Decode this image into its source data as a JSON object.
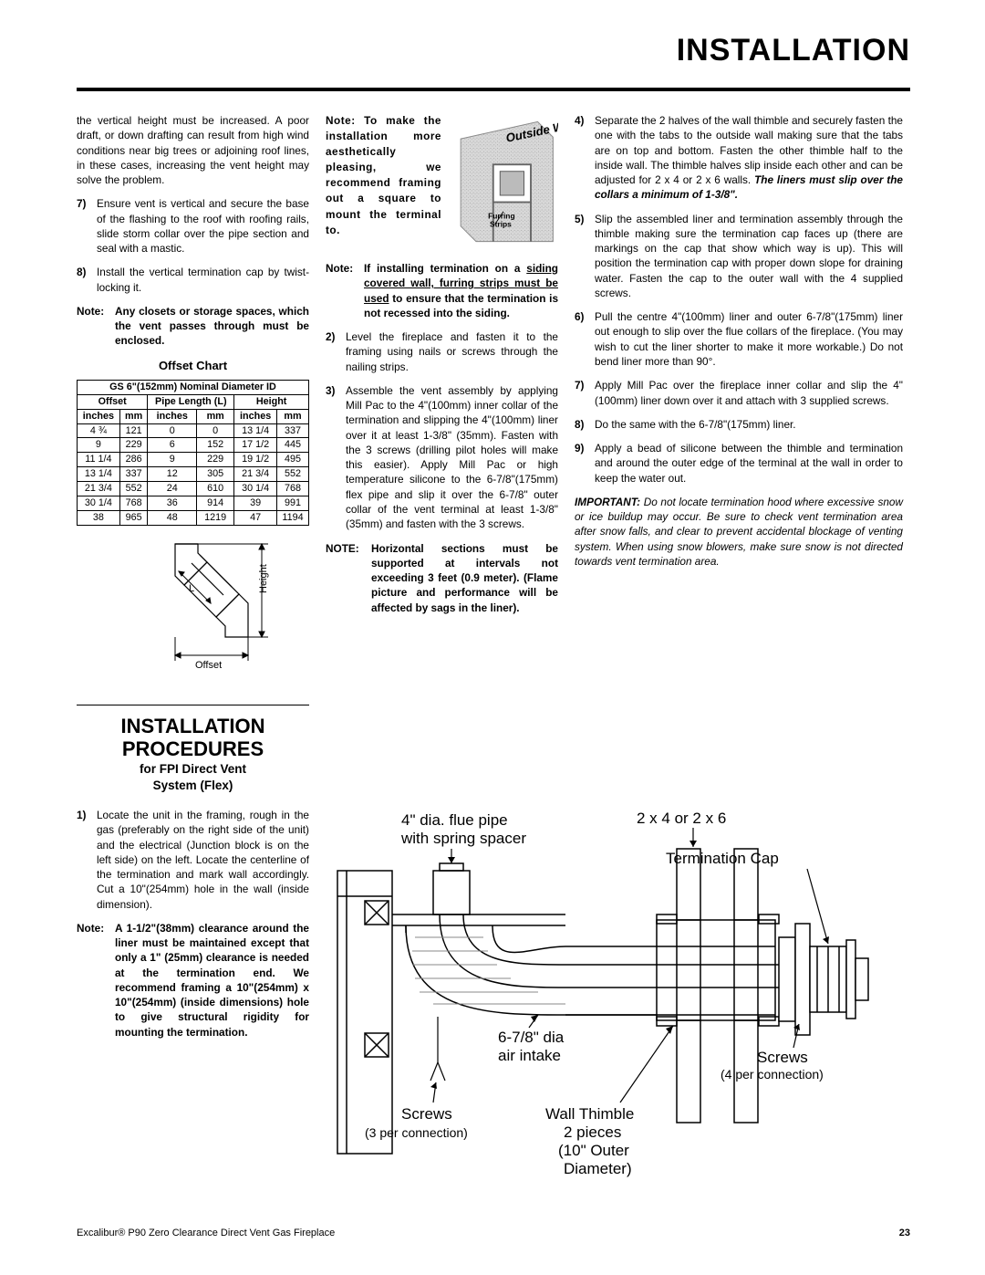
{
  "header": {
    "title": "INSTALLATION"
  },
  "col1": {
    "p_intro": "the vertical height must be increased.  A poor draft, or down drafting can result from high wind conditions near big trees or adjoining roof lines, in these cases, increasing the vent height may solve the problem.",
    "item7": "Ensure vent is vertical and secure the base of the flashing to the roof with roofing rails, slide storm collar over the pipe section and seal with a mastic.",
    "item8": "Install the vertical termination cap by twist-locking it.",
    "note1": "Any closets or storage spaces, which the vent passes through must be enclosed.",
    "offset_heading": "Offset Chart",
    "table_title": "GS 6\"(152mm) Nominal Diameter ID",
    "headers": {
      "offset": "Offset",
      "pipelen": "Pipe Length (L)",
      "height": "Height",
      "inches": "inches",
      "mm": "mm"
    },
    "rows": [
      {
        "oi": "4 ¾",
        "omm": "121",
        "pi": "0",
        "pmm": "0",
        "hi": "13 1/4",
        "hmm": "337"
      },
      {
        "oi": "9",
        "omm": "229",
        "pi": "6",
        "pmm": "152",
        "hi": "17 1/2",
        "hmm": "445"
      },
      {
        "oi": "11 1/4",
        "omm": "286",
        "pi": "9",
        "pmm": "229",
        "hi": "19 1/2",
        "hmm": "495"
      },
      {
        "oi": "13 1/4",
        "omm": "337",
        "pi": "12",
        "pmm": "305",
        "hi": "21 3/4",
        "hmm": "552"
      },
      {
        "oi": "21 3/4",
        "omm": "552",
        "pi": "24",
        "pmm": "610",
        "hi": "30 1/4",
        "hmm": "768"
      },
      {
        "oi": "30 1/4",
        "omm": "768",
        "pi": "36",
        "pmm": "914",
        "hi": "39",
        "hmm": "991"
      },
      {
        "oi": "38",
        "omm": "965",
        "pi": "48",
        "pmm": "1219",
        "hi": "47",
        "hmm": "1194"
      }
    ],
    "diag": {
      "offset": "Offset",
      "height": "Height",
      "L": "L"
    },
    "proc_title1": "INSTALLATION",
    "proc_title2": "PROCEDURES",
    "proc_sub1": "for FPI Direct Vent",
    "proc_sub2": "System (Flex)",
    "proc1": "Locate the unit in the framing, rough in the gas (preferably on the right side of the unit) and the electrical (Junction block is on the left side) on the left. Locate the centerline of the termination and mark wall accordingly. Cut a 10\"(254mm) hole in the wall (inside dimension).",
    "proc_note": "A 1-1/2\"(38mm) clearance around the liner must be maintained except that only a 1\" (25mm) clearance is needed at the termination end. We recommend framing a 10\"(254mm) x 10\"(254mm) (inside dimensions) hole to give structural rigidity for mounting the termination."
  },
  "col2": {
    "float_text": "Note: To make the installation more aesthetically pleasing, we recommend framing out a square to mount the terminal to.",
    "wall_label": "Outside Wall",
    "furring": "Furring",
    "strips": "Strips",
    "note_siding_pre": "If installing termination on a ",
    "note_siding_u1": "siding covered wall,  furring strips must be used",
    "note_siding_post": " to ensure that the termination is not recessed into the siding.",
    "item2": "Level the fireplace and fasten it to the framing using nails or screws through the nailing strips.",
    "item3": "Assemble the vent assembly by applying Mill Pac to the 4\"(100mm) inner collar of the termination and slipping the 4\"(100mm) liner over it at least 1-3/8\" (35mm). Fasten with the 3 screws (drilling pilot holes will make this easier). Apply Mill Pac or high temperature silicone to the 6-7/8\"(175mm) flex pipe and slip it over the 6-7/8\" outer collar of the vent terminal at least 1-3/8\"(35mm) and fasten with the 3 screws.",
    "note_horiz": "Horizontal sections must be supported at intervals not exceeding 3 feet (0.9 meter). (Flame picture and performance will be affected by sags in the liner)."
  },
  "col3": {
    "item4_pre": "Separate the 2 halves of the wall thimble and securely fasten the one with the tabs to the outside wall making sure that the tabs are on top and bottom. Fasten the other thimble half to the inside wall. The thimble halves slip inside each other and can be adjusted for 2 x 4 or 2 x 6 walls. ",
    "item4_bold": "The liners must slip over the collars a minimum of 1-3/8\".",
    "item5": "Slip the assembled liner and termination assembly through the thimble making sure the termination cap faces up (there are markings on the cap that show which way is up). This will position the termination cap with proper down slope for draining water. Fasten the cap to the outer wall with the 4 supplied screws.",
    "item6": "Pull the centre 4\"(100mm) liner and outer 6-7/8\"(175mm) liner out enough to slip over the flue collars of the fireplace.  (You may wish to cut the liner shorter to make it more workable.) Do not bend liner more than 90°.",
    "item7": "Apply Mill Pac over the fireplace inner collar and slip the 4\"(100mm) liner down over it and attach with 3 supplied screws.",
    "item8": "Do the same with the 6-7/8\"(175mm) liner.",
    "item9": "Apply a bead of silicone between the thimble and termination and around the outer edge of the terminal at the wall in order to keep the water out.",
    "important_lbl": "IMPORTANT:",
    "important": " Do not locate termination hood where excessive snow or ice buildup may occur. Be sure to check vent termination area after snow falls, and clear to prevent accidental blockage of venting system. When using snow blowers, make sure snow is not directed towards vent termination area."
  },
  "bigdiag": {
    "flue": "4\" dia. flue pipe",
    "flue2": "with spring spacer",
    "wall": "2 x 4 or 2 x 6",
    "tcap": "Termination Cap",
    "intake": "6-7/8\" dia",
    "intake2": "air intake",
    "screws": "Screws",
    "screws4": "(4 per connection)",
    "screws3": "(3 per connection)",
    "thimble1": "Wall Thimble",
    "thimble2": "2 pieces",
    "thimble3": "(10\" Outer",
    "thimble4": "Diameter)"
  },
  "footer": {
    "product": "Excalibur® P90 Zero Clearance Direct Vent Gas Fireplace",
    "page": "23"
  }
}
